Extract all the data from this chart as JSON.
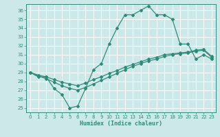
{
  "xlabel": "Humidex (Indice chaleur)",
  "xlim": [
    -0.5,
    23.5
  ],
  "ylim": [
    24.5,
    36.7
  ],
  "yticks": [
    25,
    26,
    27,
    28,
    29,
    30,
    31,
    32,
    33,
    34,
    35,
    36
  ],
  "xticks": [
    0,
    1,
    2,
    3,
    4,
    5,
    6,
    7,
    8,
    9,
    10,
    11,
    12,
    13,
    14,
    15,
    16,
    17,
    18,
    19,
    20,
    21,
    22,
    23
  ],
  "line_color": "#2e8b7a",
  "bg_color": "#cde8e8",
  "grid_color": "#ffffff",
  "line1_x": [
    0,
    1,
    2,
    3,
    4,
    5,
    6,
    7,
    8,
    9,
    10,
    11,
    12,
    13,
    14,
    15,
    16,
    17,
    18,
    19,
    20,
    21,
    22,
    23
  ],
  "line1_y": [
    29.0,
    28.5,
    28.5,
    27.2,
    26.5,
    25.0,
    25.2,
    27.2,
    29.3,
    30.0,
    32.2,
    34.0,
    35.5,
    35.5,
    36.0,
    36.5,
    35.5,
    35.5,
    35.0,
    32.2,
    32.2,
    30.5,
    31.0,
    30.5
  ],
  "line2_x": [
    0,
    1,
    2,
    3,
    4,
    5,
    6,
    7,
    8,
    9,
    10,
    11,
    12,
    13,
    14,
    15,
    16,
    17,
    18,
    19,
    20,
    21,
    22,
    23
  ],
  "line2_y": [
    29.0,
    28.7,
    28.5,
    28.2,
    27.9,
    27.7,
    27.5,
    27.8,
    28.2,
    28.5,
    28.9,
    29.2,
    29.6,
    29.9,
    30.2,
    30.5,
    30.7,
    31.0,
    31.1,
    31.2,
    31.3,
    31.5,
    31.6,
    30.8
  ],
  "line3_x": [
    0,
    1,
    2,
    3,
    4,
    5,
    6,
    7,
    8,
    9,
    10,
    11,
    12,
    13,
    14,
    15,
    16,
    17,
    18,
    19,
    20,
    21,
    22,
    23
  ],
  "line3_y": [
    29.0,
    28.6,
    28.3,
    27.9,
    27.5,
    27.2,
    27.0,
    27.3,
    27.7,
    28.1,
    28.5,
    28.9,
    29.3,
    29.7,
    30.0,
    30.3,
    30.5,
    30.8,
    31.0,
    31.1,
    31.2,
    31.4,
    31.5,
    30.7
  ],
  "marker": "D",
  "markersize": 2.0,
  "linewidth": 0.9
}
